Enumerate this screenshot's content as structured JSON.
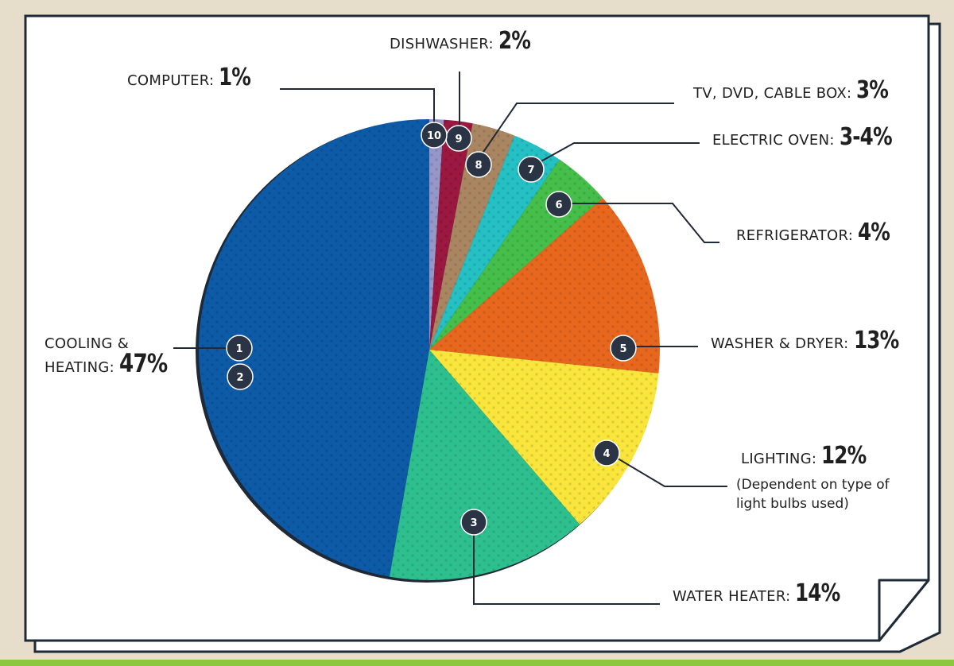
{
  "chart_data": {
    "type": "pie",
    "title": "",
    "slices": [
      {
        "id": "1",
        "label": "COOLING & HEATING:",
        "value_text": "47%",
        "value": 47,
        "color": "#0d5aa7"
      },
      {
        "id": "3",
        "label": "WATER HEATER:",
        "value_text": "14%",
        "value": 14,
        "color": "#2ebf8e"
      },
      {
        "id": "4",
        "label": "LIGHTING:",
        "value_text": "12%",
        "value": 12,
        "color": "#f9e53b"
      },
      {
        "id": "5",
        "label": "WASHER & DRYER:",
        "value_text": "13%",
        "value": 13,
        "color": "#e8671e"
      },
      {
        "id": "6",
        "label": "REFRIGERATOR:",
        "value_text": "4%",
        "value": 4,
        "color": "#45bf4a"
      },
      {
        "id": "7",
        "label": "ELECTRIC OVEN:",
        "value_text": "3-4%",
        "value": 3.5,
        "color": "#24c0c4"
      },
      {
        "id": "8",
        "label": "TV, DVD, CABLE BOX:",
        "value_text": "3%",
        "value": 3,
        "color": "#a98661"
      },
      {
        "id": "9",
        "label": "DISHWASHER:",
        "value_text": "2%",
        "value": 2,
        "color": "#9b1841"
      },
      {
        "id": "10",
        "label": "COMPUTER:",
        "value_text": "1%",
        "value": 1,
        "color": "#9696c8"
      }
    ],
    "extra_badges": [
      "2"
    ],
    "notes": {
      "lighting": [
        "(Dependent on type of",
        "light bulbs used)"
      ]
    }
  },
  "labels": {
    "cooling_line1": "COOLING &",
    "cooling_line2": "HEATING:",
    "cooling_pct": "47%",
    "water_heater": "WATER HEATER:",
    "water_heater_pct": "14%",
    "lighting": "LIGHTING:",
    "lighting_pct": "12%",
    "lighting_note1": "(Dependent on type of",
    "lighting_note2": "light bulbs used)",
    "washer": "WASHER & DRYER:",
    "washer_pct": "13%",
    "fridge": "REFRIGERATOR:",
    "fridge_pct": "4%",
    "oven": "ELECTRIC OVEN:",
    "oven_pct": "3-4%",
    "tv": "TV, DVD, CABLE BOX:",
    "tv_pct": "3%",
    "dishwasher": "DISHWASHER:",
    "dishwasher_pct": "2%",
    "computer": "COMPUTER:",
    "computer_pct": "1%"
  },
  "colors": {
    "background": "#e6ddcb",
    "card": "#ffffff",
    "outline": "#1f2a36",
    "badge": "#2b3444",
    "accent_strip": "#8dc63f"
  }
}
